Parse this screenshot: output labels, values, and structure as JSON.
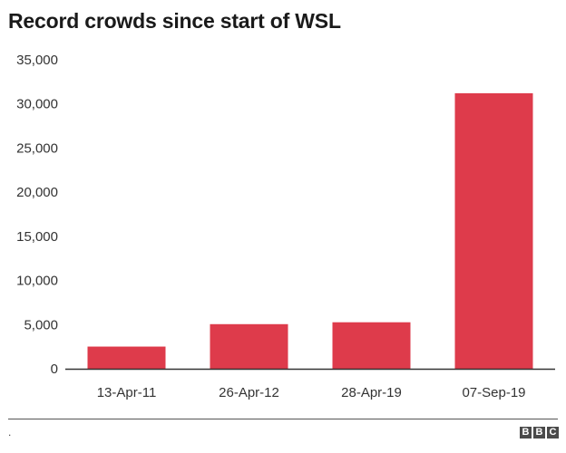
{
  "chart_data": {
    "type": "bar",
    "title": "Record crowds since start of WSL",
    "categories": [
      "13-Apr-11",
      "26-Apr-12",
      "28-Apr-19",
      "07-Sep-19"
    ],
    "values": [
      2510,
      5052,
      5265,
      31213
    ],
    "ylim": [
      0,
      35000
    ],
    "yticks": [
      0,
      5000,
      10000,
      15000,
      20000,
      25000,
      30000,
      35000
    ],
    "ytick_labels": [
      "0",
      "5,000",
      "10,000",
      "15,000",
      "20,000",
      "25,000",
      "30,000",
      "35,000"
    ],
    "xlabel": "",
    "ylabel": "",
    "grid": false,
    "bar_color": "#de3b4b"
  },
  "footer": {
    "note": ".",
    "logo": [
      "B",
      "B",
      "C"
    ]
  }
}
